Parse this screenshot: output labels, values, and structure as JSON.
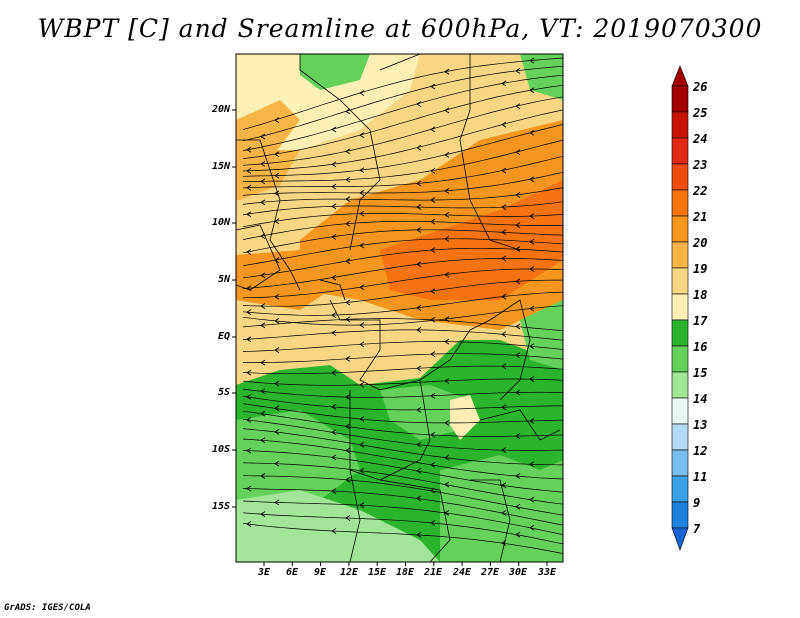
{
  "title": "WBPT [C] and Sreamline at 600hPa, VT: 2019070300",
  "credit": "GrADS: IGES/COLA",
  "lat_labels": [
    "20N",
    "15N",
    "10N",
    "5N",
    "EQ",
    "5S",
    "10S",
    "15S"
  ],
  "lon_labels": [
    "3E",
    "6E",
    "9E",
    "12E",
    "15E",
    "18E",
    "21E",
    "24E",
    "27E",
    "30E",
    "33E"
  ],
  "colorbar": {
    "labels": [
      "26",
      "25",
      "24",
      "23",
      "22",
      "21",
      "20",
      "19",
      "18",
      "17",
      "16",
      "15",
      "14",
      "13",
      "12",
      "11",
      "9",
      "7"
    ],
    "colors": [
      "#a50000",
      "#c81405",
      "#e12814",
      "#f04b0f",
      "#f5730f",
      "#f5961e",
      "#f7b447",
      "#f8d684",
      "#fbefb4",
      "#2db42d",
      "#64d25a",
      "#a0e696",
      "#e6f8f0",
      "#b4dcf5",
      "#78bef0",
      "#3ca0e6",
      "#1e82dc",
      "#1464d2"
    ]
  },
  "map_colors": {
    "sand": "#f8d684",
    "cream": "#fbefb4",
    "orange_light": "#f7b447",
    "orange": "#f5961e",
    "orange_dark": "#f5730f",
    "green": "#2db42d",
    "green_mid": "#64d25a",
    "green_light": "#a0e696"
  }
}
